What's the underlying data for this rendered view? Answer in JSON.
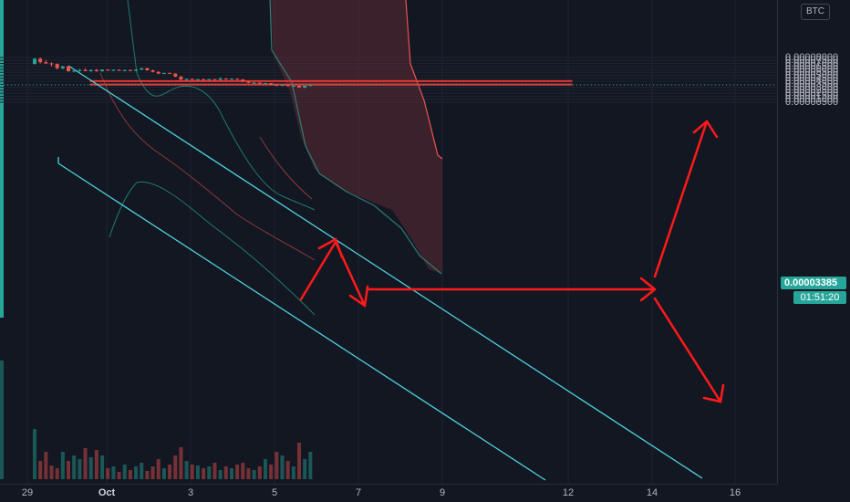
{
  "currency": "BTC",
  "last_price": "0.00003385",
  "countdown": "01:51:20",
  "price_axis": {
    "top_partial": "0.00008000",
    "labels": [
      "0.00007500",
      "0.00007000",
      "0.00006500",
      "0.00006000",
      "0.00005500",
      "0.00005000",
      "0.00004500",
      "0.00004000",
      "0.00003500",
      "0.00003000",
      "0.00002500",
      "0.00002000",
      "0.00001500",
      "0.00001000",
      "0.00000500"
    ]
  },
  "time_axis": {
    "labels": [
      {
        "text": "29",
        "bold": false
      },
      {
        "text": "Oct",
        "bold": true
      },
      {
        "text": "3",
        "bold": false
      },
      {
        "text": "5",
        "bold": false
      },
      {
        "text": "7",
        "bold": false
      },
      {
        "text": "9",
        "bold": false
      },
      {
        "text": "12",
        "bold": false
      },
      {
        "text": "14",
        "bold": false
      },
      {
        "text": "16",
        "bold": false
      }
    ]
  },
  "colors": {
    "background": "#131722",
    "up": "#26a69a",
    "down": "#ef5350",
    "channel": "#4dd0e1",
    "zone": "#b71c1c",
    "arrow": "#ff1a1a",
    "cloud": "#5c2a33"
  },
  "chart_data": {
    "type": "candlestick",
    "symbol_quote": "BTC",
    "y_range": [
      2.5e-06,
      8.02e-05
    ],
    "last_close": 3.385e-05,
    "resistance_zones": [
      [
        3.97e-05,
        4.12e-05
      ],
      [
        3.38e-05,
        3.55e-05
      ]
    ],
    "candles": [
      [
        6.9e-05,
        7.9e-05,
        6.8e-05,
        7.8e-05
      ],
      [
        7.8e-05,
        8e-05,
        7e-05,
        7.2e-05
      ],
      [
        7.2e-05,
        7.6e-05,
        6.9e-05,
        7e-05
      ],
      [
        7e-05,
        7.2e-05,
        6.5e-05,
        6.9e-05
      ],
      [
        6.9e-05,
        7e-05,
        6e-05,
        6.2e-05
      ],
      [
        6.2e-05,
        6.6e-05,
        6e-05,
        6.5e-05
      ],
      [
        6.5e-05,
        6.6e-05,
        5.6e-05,
        5.7e-05
      ],
      [
        5.7e-05,
        6e-05,
        5.5e-05,
        5.8e-05
      ],
      [
        5.8e-05,
        6.1e-05,
        5.6e-05,
        5.9e-05
      ],
      [
        5.9e-05,
        6.2e-05,
        5.7e-05,
        5.7e-05
      ],
      [
        5.7e-05,
        6e-05,
        5.6e-05,
        5.9e-05
      ],
      [
        5.9e-05,
        6.1e-05,
        5.6e-05,
        5.7e-05
      ],
      [
        5.7e-05,
        6e-05,
        5.6e-05,
        5.95e-05
      ],
      [
        5.95e-05,
        6.05e-05,
        5.75e-05,
        5.8e-05
      ],
      [
        5.8e-05,
        6e-05,
        5.7e-05,
        5.92e-05
      ],
      [
        5.92e-05,
        6.05e-05,
        5.75e-05,
        5.8e-05
      ],
      [
        5.8e-05,
        5.95e-05,
        5.7e-05,
        5.88e-05
      ],
      [
        5.88e-05,
        6e-05,
        5.7e-05,
        5.78e-05
      ],
      [
        5.78e-05,
        6e-05,
        5.7e-05,
        5.95e-05
      ],
      [
        5.95e-05,
        6.25e-05,
        5.9e-05,
        6.2e-05
      ],
      [
        6.2e-05,
        6.3e-05,
        5.8e-05,
        5.85e-05
      ],
      [
        5.85e-05,
        5.95e-05,
        5.5e-05,
        5.6e-05
      ],
      [
        5.6e-05,
        5.7e-05,
        5.2e-05,
        5.3e-05
      ],
      [
        5.3e-05,
        5.45e-05,
        5.2e-05,
        5.4e-05
      ],
      [
        5.4e-05,
        5.5e-05,
        5.25e-05,
        5.3e-05
      ],
      [
        5.3e-05,
        5.35e-05,
        4.7e-05,
        4.8e-05
      ],
      [
        4.8e-05,
        4.85e-05,
        4.2e-05,
        4.3e-05
      ],
      [
        4.3e-05,
        4.45e-05,
        4.1e-05,
        4.4e-05
      ],
      [
        4.4e-05,
        4.45e-05,
        4.2e-05,
        4.25e-05
      ],
      [
        4.25e-05,
        4.4e-05,
        4.15e-05,
        4.35e-05
      ],
      [
        4.35e-05,
        4.45e-05,
        4.2e-05,
        4.28e-05
      ],
      [
        4.28e-05,
        4.4e-05,
        4.2e-05,
        4.36e-05
      ],
      [
        4.36e-05,
        4.4e-05,
        4.2e-05,
        4.25e-05
      ],
      [
        4.25e-05,
        4.7e-05,
        4.2e-05,
        4.45e-05
      ],
      [
        4.45e-05,
        4.55e-05,
        4.25e-05,
        4.3e-05
      ],
      [
        4.3e-05,
        4.48e-05,
        4.25e-05,
        4.43e-05
      ],
      [
        4.43e-05,
        4.48e-05,
        4.25e-05,
        4.3e-05
      ],
      [
        4.3e-05,
        4.4e-05,
        3.9e-05,
        3.95e-05
      ],
      [
        3.95e-05,
        4e-05,
        3.7e-05,
        3.75e-05
      ],
      [
        3.75e-05,
        3.85e-05,
        3.65e-05,
        3.78e-05
      ],
      [
        3.78e-05,
        3.82e-05,
        3.6e-05,
        3.62e-05
      ],
      [
        3.62e-05,
        3.75e-05,
        3.55e-05,
        3.7e-05
      ],
      [
        3.7e-05,
        3.72e-05,
        3.35e-05,
        3.4e-05
      ],
      [
        3.4e-05,
        3.5e-05,
        3.2e-05,
        3.25e-05
      ],
      [
        3.25e-05,
        3.45e-05,
        3.2e-05,
        3.4e-05
      ],
      [
        3.4e-05,
        3.42e-05,
        3.18e-05,
        3.2e-05
      ],
      [
        3.2e-05,
        3.3e-05,
        3.08e-05,
        3.25e-05
      ],
      [
        3.25e-05,
        3.3e-05,
        2.9e-05,
        2.95e-05
      ],
      [
        2.95e-05,
        3.3e-05,
        2.85e-05,
        3.25e-05
      ],
      [
        3.25e-05,
        3.5e-05,
        3.15e-05,
        3.38e-05
      ]
    ],
    "volumes": [
      55,
      20,
      30,
      15,
      12,
      30,
      20,
      26,
      22,
      34,
      24,
      32,
      26,
      12,
      14,
      8,
      16,
      10,
      14,
      18,
      9,
      14,
      22,
      12,
      16,
      26,
      35,
      20,
      16,
      15,
      12,
      14,
      18,
      10,
      14,
      12,
      16,
      18,
      12,
      10,
      14,
      22,
      16,
      30,
      26,
      20,
      14,
      40,
      22,
      30
    ]
  }
}
